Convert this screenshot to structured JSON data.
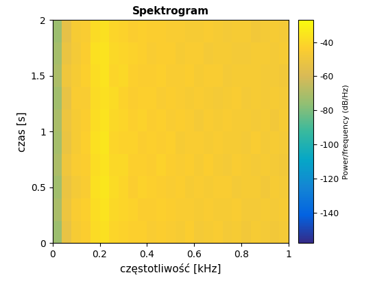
{
  "chart_data": {
    "type": "heatmap",
    "title": "Spektrogram",
    "x_label": "częstotliwość [kHz]",
    "y_label": "czas [s]",
    "xlim": [
      0,
      1
    ],
    "ylim": [
      0,
      2
    ],
    "xticks": [
      0,
      0.2,
      0.4,
      0.6,
      0.8,
      1
    ],
    "yticks": [
      0,
      0.5,
      1,
      1.5,
      2
    ],
    "colorbar_label": "Power/frequency (dB/Hz)",
    "colorbar_range": [
      -158,
      -27
    ],
    "colorbar_ticks": [
      -140,
      -120,
      -100,
      -80,
      -60,
      -40
    ],
    "cells": [
      [
        -74,
        -53,
        -46,
        -44,
        -39,
        -37,
        -41,
        -42,
        -43,
        -43,
        -45,
        -44,
        -45,
        -46,
        -44,
        -47,
        -46,
        -45,
        -47,
        -46,
        -48,
        -46,
        -47,
        -48,
        -47
      ],
      [
        -71,
        -51,
        -45,
        -43,
        -38,
        -36,
        -40,
        -41,
        -42,
        -44,
        -44,
        -43,
        -44,
        -45,
        -45,
        -46,
        -45,
        -46,
        -46,
        -45,
        -47,
        -47,
        -46,
        -47,
        -46
      ],
      [
        -73,
        -52,
        -47,
        -45,
        -37,
        -35,
        -39,
        -41,
        -44,
        -42,
        -43,
        -44,
        -45,
        -44,
        -46,
        -45,
        -46,
        -45,
        -45,
        -47,
        -46,
        -46,
        -48,
        -46,
        -47
      ],
      [
        -70,
        -50,
        -45,
        -44,
        -38,
        -36,
        -40,
        -40,
        -43,
        -43,
        -44,
        -42,
        -44,
        -45,
        -44,
        -46,
        -44,
        -46,
        -47,
        -45,
        -46,
        -47,
        -46,
        -47,
        -48
      ],
      [
        -72,
        -52,
        -46,
        -43,
        -37,
        -35,
        -41,
        -42,
        -42,
        -44,
        -43,
        -44,
        -43,
        -46,
        -45,
        -45,
        -46,
        -45,
        -46,
        -46,
        -47,
        -45,
        -47,
        -46,
        -47
      ],
      [
        -71,
        -51,
        -46,
        -44,
        -38,
        -36,
        -40,
        -41,
        -43,
        -42,
        -44,
        -43,
        -45,
        -44,
        -45,
        -47,
        -45,
        -46,
        -45,
        -46,
        -46,
        -47,
        -46,
        -48,
        -46
      ],
      [
        -73,
        -53,
        -45,
        -45,
        -39,
        -37,
        -39,
        -42,
        -44,
        -43,
        -43,
        -45,
        -44,
        -45,
        -46,
        -45,
        -46,
        -47,
        -46,
        -45,
        -47,
        -46,
        -47,
        -46,
        -47
      ],
      [
        -70,
        -50,
        -46,
        -43,
        -38,
        -36,
        -41,
        -40,
        -43,
        -44,
        -44,
        -43,
        -45,
        -45,
        -44,
        -46,
        -45,
        -45,
        -47,
        -46,
        -46,
        -46,
        -47,
        -47,
        -48
      ],
      [
        -72,
        -52,
        -47,
        -44,
        -37,
        -36,
        -40,
        -41,
        -42,
        -43,
        -45,
        -44,
        -44,
        -46,
        -45,
        -45,
        -47,
        -46,
        -46,
        -47,
        -47,
        -46,
        -46,
        -47,
        -46
      ],
      [
        -74,
        -54,
        -46,
        -45,
        -39,
        -37,
        -41,
        -42,
        -44,
        -43,
        -44,
        -44,
        -45,
        -45,
        -46,
        -46,
        -45,
        -46,
        -47,
        -46,
        -46,
        -48,
        -47,
        -46,
        -47
      ]
    ]
  }
}
